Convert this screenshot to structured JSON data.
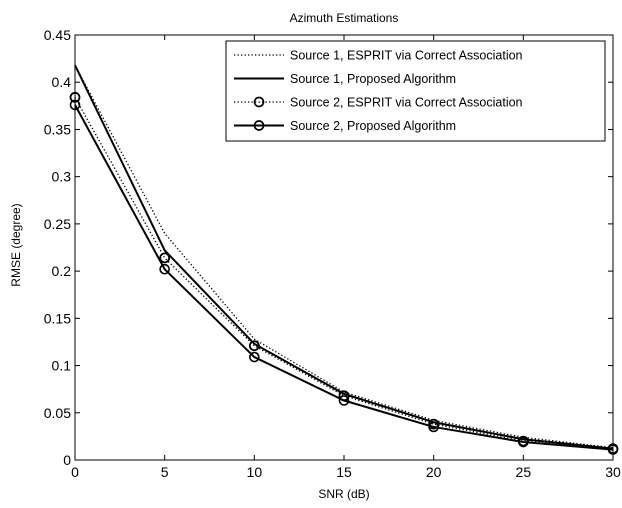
{
  "chart_data": {
    "type": "line",
    "title": "Azimuth Estimations",
    "xlabel": "SNR (dB)",
    "ylabel": "RMSE (degree)",
    "xlim": [
      0,
      30
    ],
    "ylim": [
      0,
      0.45
    ],
    "xticks": [
      0,
      5,
      10,
      15,
      20,
      25,
      30
    ],
    "xtick_labels": [
      "0",
      "5",
      "10",
      "15",
      "20",
      "25",
      "30"
    ],
    "yticks": [
      0,
      0.05,
      0.1,
      0.15,
      0.2,
      0.25,
      0.3,
      0.35,
      0.4,
      0.45
    ],
    "ytick_labels": [
      "0",
      "0.05",
      "0.1",
      "0.15",
      "0.2",
      "0.25",
      "0.3",
      "0.35",
      "0.4",
      "0.45"
    ],
    "grid": false,
    "legend_position": "top-right",
    "x": [
      0,
      5,
      10,
      15,
      20,
      25,
      30
    ],
    "series": [
      {
        "name": "Source 1, ESPRIT via Correct Association",
        "values": [
          0.418,
          0.24,
          0.128,
          0.072,
          0.042,
          0.024,
          0.013
        ],
        "line_style": "dotted",
        "marker": "none",
        "color": "#000000"
      },
      {
        "name": "Source 1, Proposed Algorithm",
        "values": [
          0.418,
          0.222,
          0.123,
          0.07,
          0.04,
          0.022,
          0.012
        ],
        "line_style": "solid",
        "marker": "none",
        "color": "#000000"
      },
      {
        "name": "Source 2, ESPRIT via Correct Association",
        "values": [
          0.384,
          0.214,
          0.121,
          0.068,
          0.038,
          0.02,
          0.012
        ],
        "line_style": "dotted",
        "marker": "circle",
        "color": "#000000"
      },
      {
        "name": "Source 2, Proposed Algorithm",
        "values": [
          0.376,
          0.202,
          0.109,
          0.063,
          0.035,
          0.019,
          0.011
        ],
        "line_style": "solid",
        "marker": "circle",
        "color": "#000000"
      }
    ]
  }
}
